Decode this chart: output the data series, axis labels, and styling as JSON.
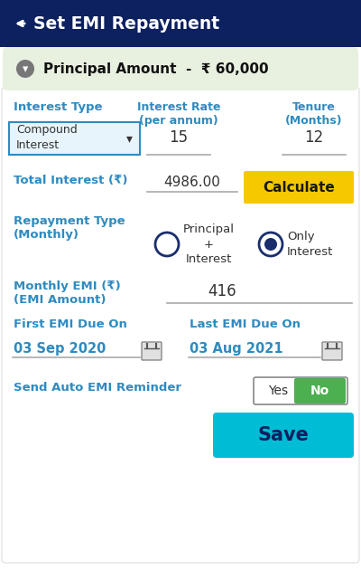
{
  "header_bg": "#0d2060",
  "header_text": "Set EMI Repayment",
  "header_text_color": "#ffffff",
  "principal_bg": "#e8f0e0",
  "principal_text": "Principal Amount  -  ₹ 60,000",
  "principal_text_color": "#111111",
  "body_bg": "#ffffff",
  "label_color": "#2e8bc0",
  "value_color": "#333333",
  "interest_type_label": "Interest Type",
  "interest_type_value": "Compound\nInterest",
  "interest_rate_label": "Interest Rate\n(per annum)",
  "interest_rate_value": "15",
  "tenure_label": "Tenure\n(Months)",
  "tenure_value": "12",
  "total_interest_label": "Total Interest (₹)",
  "total_interest_value": "4986.00",
  "calculate_btn_color": "#f5c800",
  "calculate_btn_text": "Calculate",
  "calculate_btn_text_color": "#1a1a00",
  "repayment_label": "Repayment Type\n(Monthly)",
  "option1_label": "Principal\n+\nInterest",
  "option2_label": "Only\nInterest",
  "emi_label": "Monthly EMI (₹)\n(EMI Amount)",
  "emi_value": "416",
  "first_emi_label": "First EMI Due On",
  "first_emi_value": "03 Sep 2020",
  "last_emi_label": "Last EMI Due On",
  "last_emi_value": "03 Aug 2021",
  "reminder_label": "Send Auto EMI Reminder",
  "save_btn_color": "#00bcd4",
  "save_btn_text": "Save",
  "save_btn_text_color": "#0d2060",
  "line_color": "#aaaaaa",
  "dropdown_border": "#2e8bc0",
  "dropdown_bg": "#e8f4fc",
  "radio_color": "#1a2e6e",
  "no_btn_color": "#4caf50",
  "toggle_border": "#888888",
  "card_bg": "#f9faf8",
  "card_border": "#dddddd"
}
